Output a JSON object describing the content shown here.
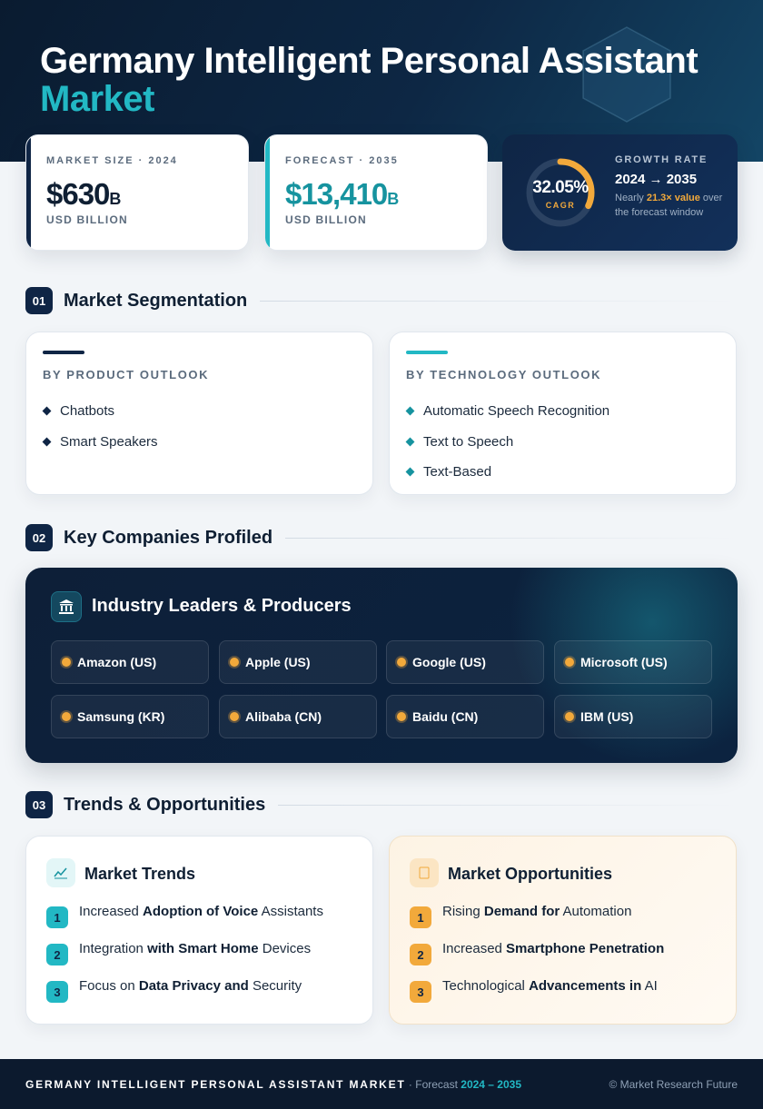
{
  "title": {
    "line1": "Germany Intelligent Personal Assistant",
    "line2": "Market"
  },
  "market_size": {
    "label": "MARKET SIZE · 2024",
    "value": "$630",
    "suffix": "B",
    "unit": "USD BILLION"
  },
  "forecast": {
    "label": "FORECAST · 2035",
    "value": "$13,410",
    "suffix": "B",
    "unit": "USD BILLION"
  },
  "growth": {
    "cagr_value": "32.05%",
    "cagr_label": "CAGR",
    "label": "GROWTH RATE",
    "range": "2024 → 2035",
    "note_prefix": "Nearly ",
    "note_highlight": "21.3× value",
    "note_suffix": " over the forecast window"
  },
  "sections": {
    "segmentation": {
      "num": "01",
      "title": "Market Segmentation"
    },
    "companies": {
      "num": "02",
      "title": "Key Companies Profiled"
    },
    "trends": {
      "num": "03",
      "title": "Trends & Opportunities"
    }
  },
  "segmentation": {
    "product": {
      "heading": "BY PRODUCT OUTLOOK",
      "items": [
        "Chatbots",
        "Smart Speakers"
      ]
    },
    "technology": {
      "heading": "BY TECHNOLOGY OUTLOOK",
      "items": [
        "Automatic Speech Recognition",
        "Text to Speech",
        "Text-Based"
      ]
    }
  },
  "companies": {
    "title": "Industry Leaders & Producers",
    "list": [
      "Amazon (US)",
      "Apple (US)",
      "Google (US)",
      "Microsoft (US)",
      "Samsung (KR)",
      "Alibaba (CN)",
      "Baidu (CN)",
      "IBM (US)"
    ]
  },
  "trends": {
    "title": "Market Trends",
    "items": [
      {
        "num": "1",
        "pre": "Increased ",
        "bold": "Adoption of Voice",
        "post": " Assistants"
      },
      {
        "num": "2",
        "pre": "Integration ",
        "bold": "with Smart Home",
        "post": " Devices"
      },
      {
        "num": "3",
        "pre": "Focus on ",
        "bold": "Data Privacy and",
        "post": " Security"
      }
    ]
  },
  "opportunities": {
    "title": "Market Opportunities",
    "items": [
      {
        "num": "1",
        "pre": "Rising ",
        "bold": "Demand for",
        "post": " Automation"
      },
      {
        "num": "2",
        "pre": "Increased ",
        "bold": "Smartphone Penetration",
        "post": ""
      },
      {
        "num": "3",
        "pre": "Technological ",
        "bold": "Advancements in",
        "post": " AI"
      }
    ]
  },
  "footer": {
    "name": "GERMANY INTELLIGENT PERSONAL ASSISTANT MARKET",
    "sep": " · Forecast ",
    "range": "2024 – 2035",
    "copyright": "© Market Research Future"
  },
  "icons": {
    "hero": "hexagon-decoration",
    "leaders": "bank-icon",
    "trends": "line-chart-icon",
    "opportunities": "lightbulb-icon"
  },
  "colors": {
    "navy": "#0f2545",
    "teal": "#22b8c4",
    "amber": "#f2a93b"
  },
  "cagr_ring_fraction": 0.32
}
